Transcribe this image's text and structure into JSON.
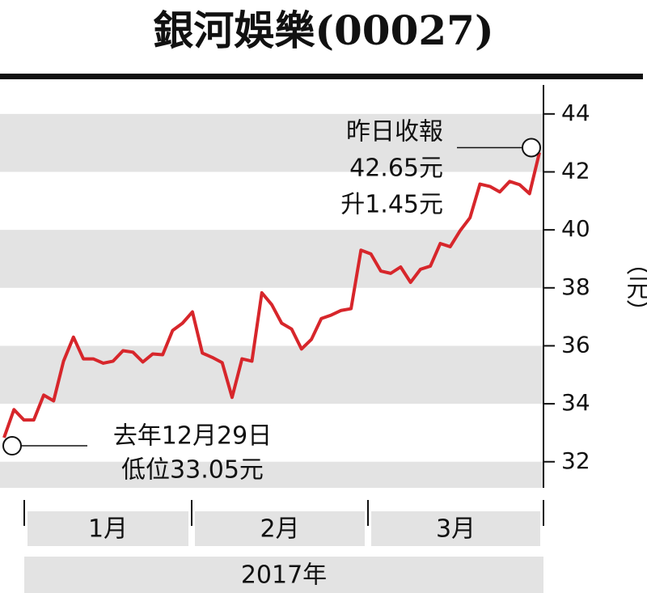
{
  "chart_data": {
    "type": "line",
    "title": "銀河娛樂(00027)",
    "y_label": "（元）",
    "categories": [
      null,
      null,
      null,
      null,
      null,
      null,
      null,
      null,
      null,
      null,
      null,
      null,
      null,
      null,
      null,
      null,
      null,
      null,
      null,
      null,
      null,
      null,
      null,
      null,
      null,
      null,
      null,
      null,
      null,
      null,
      null,
      null,
      null,
      null,
      null,
      null,
      null,
      null,
      null,
      null,
      null,
      null,
      null,
      null,
      null,
      null,
      null,
      null,
      null,
      null,
      null,
      null,
      null,
      null,
      null
    ],
    "series": [
      {
        "name": "銀河娛樂",
        "color": "#d7262b",
        "values": [
          32.83,
          33.8,
          33.44,
          33.44,
          34.3,
          34.1,
          35.47,
          36.3,
          35.55,
          35.55,
          35.4,
          35.47,
          35.83,
          35.78,
          35.44,
          35.72,
          35.69,
          36.53,
          36.78,
          37.17,
          35.75,
          35.6,
          35.42,
          34.22,
          35.55,
          35.47,
          37.83,
          37.42,
          36.78,
          36.58,
          35.89,
          36.22,
          36.94,
          37.06,
          37.22,
          37.28,
          39.3,
          39.17,
          38.58,
          38.5,
          38.72,
          38.19,
          38.64,
          38.75,
          39.53,
          39.42,
          39.97,
          40.42,
          41.58,
          41.5,
          41.31,
          41.67,
          41.56,
          41.25,
          42.67
        ]
      }
    ],
    "ylim": [
      31.1,
      45.0
    ],
    "yticks": [
      32,
      34,
      36,
      38,
      40,
      42,
      44
    ],
    "month_labels": [
      "1月",
      "2月",
      "3月"
    ],
    "year_label": "2017年",
    "annotations": {
      "end": [
        "昨日收報",
        "42.65元",
        "升1.45元"
      ],
      "start": [
        "去年12月29日",
        "低位33.05元"
      ]
    }
  }
}
